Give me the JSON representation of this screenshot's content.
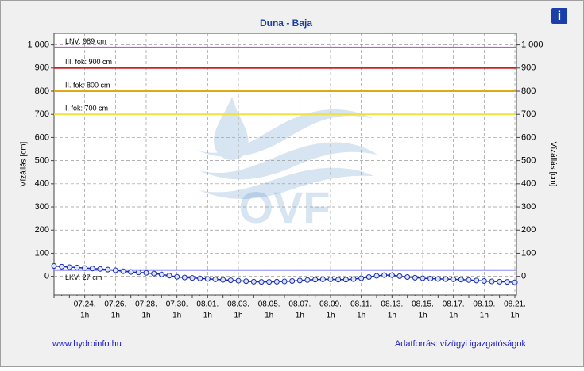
{
  "chart_data": {
    "type": "line",
    "title": "Duna - Baja",
    "y_label": "Vízállás [cm]",
    "y2_label": "Vízállás [cm]",
    "watermark": "OVF",
    "footer_left": "www.hydroinfo.hu",
    "footer_right": "Adatforrás: vízügyi igazgatóságok",
    "info_icon": "i",
    "category_sublabel": "1h",
    "categories": [
      null,
      null,
      null,
      null,
      "07.24.",
      null,
      null,
      null,
      "07.26.",
      null,
      null,
      null,
      "07.28.",
      null,
      null,
      null,
      "07.30.",
      null,
      null,
      null,
      "08.01.",
      null,
      null,
      null,
      "08.03.",
      null,
      null,
      null,
      "08.05.",
      null,
      null,
      null,
      "08.07.",
      null,
      null,
      null,
      "08.09.",
      null,
      null,
      null,
      "08.11.",
      null,
      null,
      null,
      "08.13.",
      null,
      null,
      null,
      "08.15.",
      null,
      null,
      null,
      "08.17.",
      null,
      null,
      null,
      "08.19.",
      null,
      null,
      null,
      "08.21."
    ],
    "series": [
      {
        "name": "Vízállás",
        "color": "#1a2ab0",
        "values": [
          45,
          42,
          40,
          38,
          36,
          34,
          32,
          29,
          26,
          22,
          19,
          17,
          15,
          12,
          8,
          3,
          -2,
          -5,
          -7,
          -9,
          -11,
          -13,
          -15,
          -17,
          -19,
          -21,
          -23,
          -24,
          -24,
          -23,
          -22,
          -20,
          -18,
          -16,
          -14,
          -13,
          -13,
          -14,
          -14,
          -12,
          -8,
          -3,
          2,
          5,
          5,
          1,
          -3,
          -6,
          -8,
          -10,
          -11,
          -12,
          -13,
          -14,
          -16,
          -18,
          -20,
          -22,
          -23,
          -24,
          -26
        ]
      }
    ],
    "thresholds": [
      {
        "label": "LNV: 989 cm",
        "value": 989,
        "color": "#d050d8"
      },
      {
        "label": "III. fok: 900 cm",
        "value": 900,
        "color": "#d42020"
      },
      {
        "label": "II. fok: 800 cm",
        "value": 800,
        "color": "#e0a818"
      },
      {
        "label": "I. fok: 700 cm",
        "value": 700,
        "color": "#f0e040"
      },
      {
        "label": "LKV: 27 cm",
        "value": 27,
        "color": "#8c8cff"
      }
    ],
    "ylim": [
      -80,
      1050
    ],
    "yticks": [
      0,
      100,
      200,
      300,
      400,
      500,
      600,
      700,
      800,
      900,
      {
        "value": 1000,
        "label": "1 000"
      }
    ],
    "y2lim": [
      -80,
      1050
    ],
    "y2ticks": [
      0,
      100,
      200,
      300,
      400,
      500,
      600,
      700,
      800,
      900,
      {
        "value": 1000,
        "label": "1 000"
      }
    ],
    "grid": true
  }
}
